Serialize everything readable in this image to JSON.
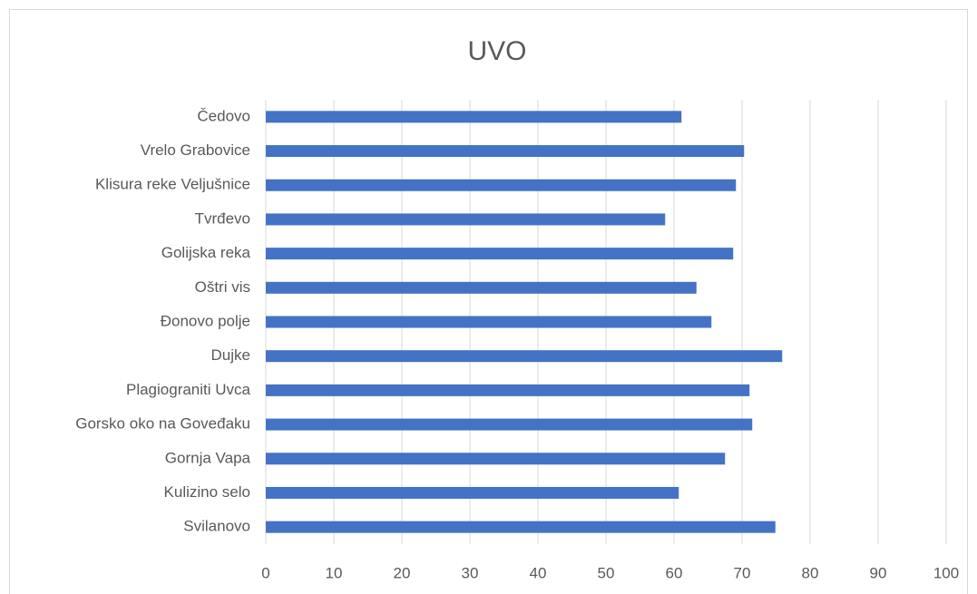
{
  "chart_data": {
    "type": "bar",
    "orientation": "horizontal",
    "title": "UVO",
    "categories": [
      "Čedovo",
      "Vrelo Grabovice",
      "Klisura reke Veljušnice",
      "Tvrđevo",
      "Golijska reka",
      "Oštri vis",
      "Đonovo polje",
      "Dujke",
      "Plagiograniti Uvca",
      "Gorsko oko na Goveđaku",
      "Gornja Vapa",
      "Kulizino selo",
      "Svilanovo"
    ],
    "values": [
      61.1,
      70.3,
      69.1,
      58.7,
      68.7,
      63.3,
      65.5,
      75.9,
      71.1,
      71.5,
      67.5,
      60.7,
      74.9
    ],
    "color": "#4472c4",
    "xlim": [
      0,
      100
    ],
    "xticks": [
      0,
      10,
      20,
      30,
      40,
      50,
      60,
      70,
      80,
      90,
      100
    ],
    "grid": true
  }
}
